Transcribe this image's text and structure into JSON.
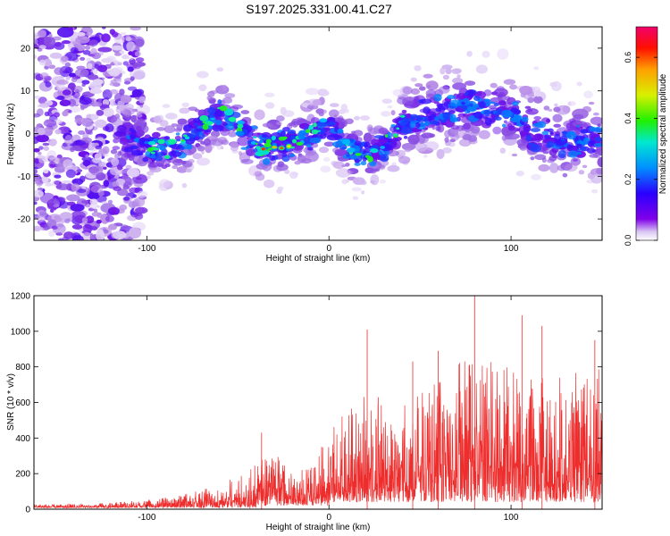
{
  "title": "S197.2025.331.00.41.C27",
  "chart_data": [
    {
      "type": "heatmap",
      "title": "S197.2025.331.00.41.C27",
      "xlabel": "Height of straight line (km)",
      "ylabel": "Frequency (Hz)",
      "xlim": [
        -162,
        150
      ],
      "ylim": [
        -25,
        25
      ],
      "xticks": [
        -100,
        0,
        100
      ],
      "yticks": [
        -20,
        -10,
        0,
        10,
        20
      ],
      "colorbar": {
        "label": "Normalized spectral amplitude",
        "range": [
          0,
          0.7
        ],
        "ticks": [
          "0.0",
          "0.2",
          "0.4",
          "0.6"
        ]
      },
      "ridge": {
        "x": [
          -110,
          -100,
          -90,
          -80,
          -70,
          -60,
          -52,
          -45,
          -38,
          -30,
          -20,
          -10,
          0,
          10,
          20,
          30,
          40,
          55,
          70,
          85,
          100,
          115,
          130,
          145
        ],
        "y": [
          -1,
          -3,
          -4,
          -2,
          2,
          5,
          3,
          -1,
          -3,
          -3,
          -2,
          0,
          2,
          -3,
          -5,
          -3,
          2,
          5,
          6,
          6,
          4,
          0,
          -2,
          -1
        ]
      }
    },
    {
      "type": "line",
      "xlabel": "Height of straight line (km)",
      "ylabel": "SNR (10 * v/v)",
      "xlim": [
        -162,
        150
      ],
      "ylim": [
        0,
        1200
      ],
      "xticks": [
        -100,
        0,
        100
      ],
      "yticks": [
        0,
        200,
        400,
        600,
        800,
        1000,
        1200
      ],
      "envelope": {
        "x": [
          -162,
          -120,
          -100,
          -80,
          -60,
          -40,
          -30,
          -20,
          -10,
          0,
          10,
          20,
          30,
          40,
          60,
          80,
          100,
          120,
          140,
          150
        ],
        "peak": [
          25,
          35,
          50,
          80,
          130,
          250,
          300,
          220,
          250,
          400,
          560,
          620,
          600,
          650,
          740,
          820,
          760,
          720,
          740,
          760
        ]
      },
      "spikes": [
        {
          "x": -37,
          "y": 430
        },
        {
          "x": 21,
          "y": 1010
        },
        {
          "x": 46,
          "y": 830
        },
        {
          "x": 60,
          "y": 890
        },
        {
          "x": 80,
          "y": 1200
        },
        {
          "x": 106,
          "y": 1090
        },
        {
          "x": 117,
          "y": 1030
        },
        {
          "x": 146,
          "y": 950
        }
      ]
    }
  ]
}
